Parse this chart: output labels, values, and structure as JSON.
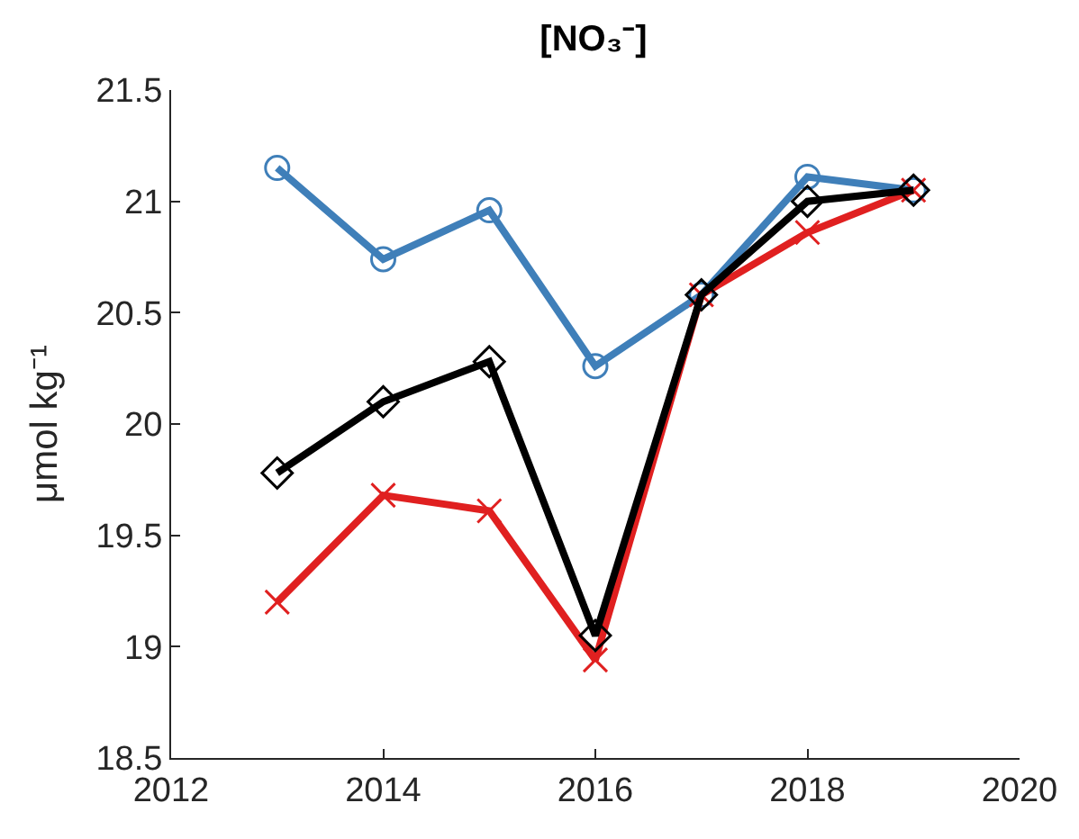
{
  "chart_data": {
    "type": "line",
    "title": "[NO₃⁻]",
    "ylabel": "μmol kg⁻¹",
    "x": [
      2013,
      2014,
      2015,
      2016,
      2017,
      2018,
      2019
    ],
    "series": [
      {
        "color": "#3f7fb9",
        "marker": "circle",
        "values": [
          21.15,
          20.74,
          20.96,
          20.26,
          20.58,
          21.11,
          21.05
        ]
      },
      {
        "color": "#e02020",
        "marker": "cross",
        "values": [
          19.2,
          19.68,
          19.61,
          18.94,
          20.58,
          20.86,
          21.05
        ]
      },
      {
        "color": "#000000",
        "marker": "diamond",
        "values": [
          19.78,
          20.1,
          20.28,
          19.05,
          20.58,
          21.0,
          21.05
        ]
      }
    ],
    "xlim": [
      2012,
      2020
    ],
    "xticks": [
      2012,
      2014,
      2016,
      2018,
      2020
    ],
    "ylim": [
      18.5,
      21.5
    ],
    "yticks": [
      18.5,
      19,
      19.5,
      20,
      20.5,
      21,
      21.5
    ],
    "grid": false,
    "line_style": "solid"
  }
}
